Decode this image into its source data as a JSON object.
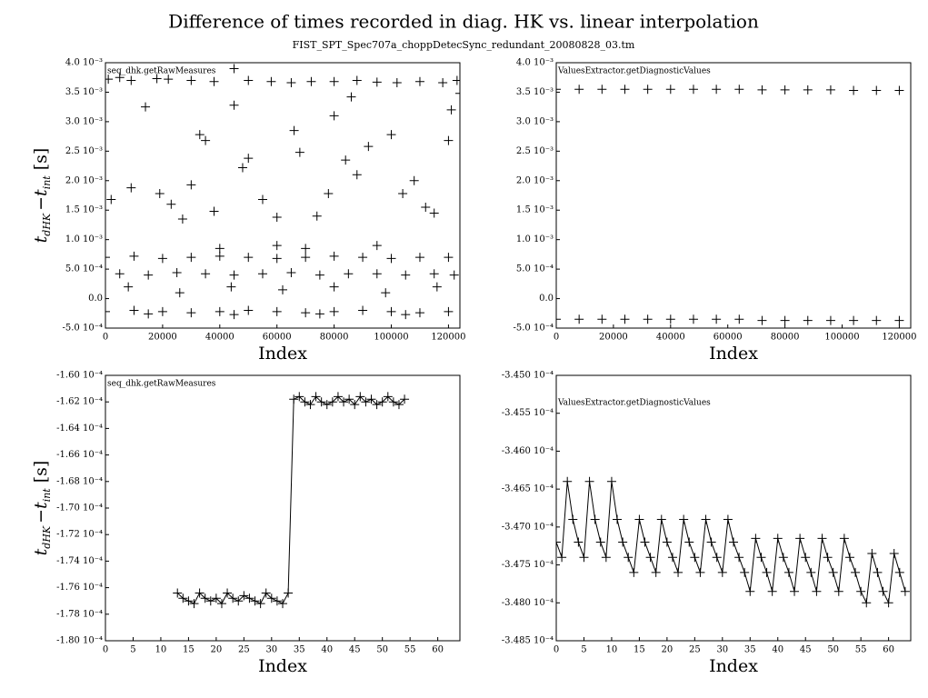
{
  "title": "Difference of times recorded in diag. HK vs. linear interpolation",
  "subtitle": "FIST_SPT_Spec707a_choppDetecSync_redundant_20080828_03.tm",
  "chart_data": [
    {
      "type": "scatter",
      "xlabel": "Index",
      "ylabel": [
        "t",
        "dHK",
        "−",
        "t",
        "int",
        " [s]"
      ],
      "xlim": [
        0,
        124000
      ],
      "xticks": [
        0,
        20000,
        40000,
        60000,
        80000,
        100000,
        120000
      ],
      "ylim": [
        -0.0005,
        0.004
      ],
      "yticks": [
        {
          "value": -0.0005,
          "label": "-5.0 10⁻⁴"
        },
        {
          "value": 0,
          "label": "0.0"
        },
        {
          "value": 0.0005,
          "label": "5.0 10⁻⁴"
        },
        {
          "value": 0.001,
          "label": "1.0 10⁻³"
        },
        {
          "value": 0.0015,
          "label": "1.5 10⁻³"
        },
        {
          "value": 0.002,
          "label": "2.0 10⁻³"
        },
        {
          "value": 0.0025,
          "label": "2.5 10⁻³"
        },
        {
          "value": 0.003,
          "label": "3.0 10⁻³"
        },
        {
          "value": 0.0035,
          "label": "3.5 10⁻³"
        },
        {
          "value": 0.004,
          "label": "4.0 10⁻³"
        }
      ],
      "series": [
        {
          "name": "seq_dhk.getRawMeasures",
          "color": "#000000",
          "x": [
            1000,
            5000,
            9000,
            18000,
            22000,
            30000,
            38000,
            45000,
            50000,
            58000,
            65000,
            72000,
            80000,
            88000,
            95000,
            102000,
            110000,
            118000,
            123000,
            2000,
            9000,
            14000,
            19000,
            23000,
            27000,
            30000,
            33000,
            35000,
            38000,
            45000,
            48000,
            50000,
            55000,
            60000,
            66000,
            68000,
            74000,
            78000,
            84000,
            88000,
            92000,
            100000,
            104000,
            108000,
            112000,
            115000,
            120000,
            121000,
            124000,
            86000,
            80000,
            40000,
            60000,
            70000,
            95000,
            0,
            10000,
            20000,
            30000,
            40000,
            50000,
            60000,
            70000,
            80000,
            90000,
            100000,
            110000,
            120000,
            5000,
            15000,
            25000,
            35000,
            45000,
            55000,
            65000,
            75000,
            85000,
            95000,
            105000,
            115000,
            122000,
            8000,
            26000,
            44000,
            62000,
            80000,
            98000,
            116000,
            0,
            10000,
            20000,
            30000,
            40000,
            50000,
            60000,
            70000,
            80000,
            90000,
            100000,
            110000,
            120000,
            15000,
            45000,
            75000,
            105000
          ],
          "values": [
            0.00372,
            0.00375,
            0.0037,
            0.00373,
            0.00372,
            0.0037,
            0.00368,
            0.0039,
            0.0037,
            0.00368,
            0.00366,
            0.00368,
            0.00368,
            0.0037,
            0.00367,
            0.00366,
            0.00368,
            0.00366,
            0.0037,
            0.00168,
            0.00188,
            0.00325,
            0.00178,
            0.0016,
            0.00135,
            0.00193,
            0.00278,
            0.00268,
            0.00148,
            0.00328,
            0.00222,
            0.00238,
            0.00168,
            0.00138,
            0.00285,
            0.00248,
            0.0014,
            0.00178,
            0.00235,
            0.0021,
            0.00258,
            0.00278,
            0.00178,
            0.002,
            0.00155,
            0.00145,
            0.00268,
            0.0032,
            0.00348,
            0.00342,
            0.0031,
            0.00085,
            0.0009,
            0.00085,
            0.0009,
            0.0007,
            0.00072,
            0.00068,
            0.0007,
            0.00072,
            0.0007,
            0.00068,
            0.0007,
            0.00072,
            0.0007,
            0.00068,
            0.0007,
            0.0007,
            0.00042,
            0.0004,
            0.00044,
            0.00042,
            0.0004,
            0.00042,
            0.00044,
            0.0004,
            0.00042,
            0.00042,
            0.0004,
            0.00042,
            0.0004,
            0.0002,
            0.0001,
            0.0002,
            0.00015,
            0.0002,
            0.0001,
            0.0002,
            -0.00022,
            -0.0002,
            -0.00022,
            -0.00024,
            -0.00022,
            -0.0002,
            -0.00022,
            -0.00024,
            -0.00022,
            -0.0002,
            -0.00022,
            -0.00024,
            -0.00022,
            -0.00026,
            -0.00027,
            -0.00026,
            -0.00027
          ]
        }
      ]
    },
    {
      "type": "scatter",
      "xlabel": "Index",
      "xlim": [
        0,
        124000
      ],
      "xticks": [
        0,
        20000,
        40000,
        60000,
        80000,
        100000,
        120000
      ],
      "ylim": [
        -0.0005,
        0.004
      ],
      "yticks": [
        {
          "value": -0.0005,
          "label": "-5.0 10⁻⁴"
        },
        {
          "value": 0,
          "label": "0.0"
        },
        {
          "value": 0.0005,
          "label": "5.0 10⁻⁴"
        },
        {
          "value": 0.001,
          "label": "1.0 10⁻³"
        },
        {
          "value": 0.0015,
          "label": "1.5 10⁻³"
        },
        {
          "value": 0.002,
          "label": "2.0 10⁻³"
        },
        {
          "value": 0.0025,
          "label": "2.5 10⁻³"
        },
        {
          "value": 0.003,
          "label": "3.0 10⁻³"
        },
        {
          "value": 0.0035,
          "label": "3.5 10⁻³"
        },
        {
          "value": 0.004,
          "label": "4.0 10⁻³"
        }
      ],
      "series": [
        {
          "name": "ValuesExtractor.getDiagnosticValues",
          "color": "#000000",
          "x": [
            0,
            8000,
            16000,
            24000,
            32000,
            40000,
            48000,
            56000,
            64000,
            72000,
            80000,
            88000,
            96000,
            104000,
            112000,
            120000,
            0,
            8000,
            16000,
            24000,
            32000,
            40000,
            48000,
            56000,
            64000,
            72000,
            80000,
            88000,
            96000,
            104000,
            112000,
            120000
          ],
          "values": [
            0.00355,
            0.00355,
            0.00355,
            0.00355,
            0.00355,
            0.00355,
            0.00355,
            0.00355,
            0.00355,
            0.00354,
            0.00354,
            0.00354,
            0.00354,
            0.00353,
            0.00353,
            0.00353,
            -0.00035,
            -0.00035,
            -0.00035,
            -0.00035,
            -0.00035,
            -0.00035,
            -0.00035,
            -0.00035,
            -0.00035,
            -0.00037,
            -0.00037,
            -0.00037,
            -0.00037,
            -0.00037,
            -0.00037,
            -0.00037
          ]
        }
      ]
    },
    {
      "type": "line",
      "xlabel": "Index",
      "ylabel": [
        "t",
        "dHK",
        "−",
        "t",
        "int",
        " [s]"
      ],
      "xlim": [
        0,
        64
      ],
      "xticks": [
        0,
        5,
        10,
        15,
        20,
        25,
        30,
        35,
        40,
        45,
        50,
        55,
        60
      ],
      "ylim": [
        -0.00018,
        -0.00016
      ],
      "yticks": [
        {
          "value": -0.00018,
          "label": "-1.80 10⁻⁴"
        },
        {
          "value": -0.000178,
          "label": "-1.78 10⁻⁴"
        },
        {
          "value": -0.000176,
          "label": "-1.76 10⁻⁴"
        },
        {
          "value": -0.000174,
          "label": "-1.74 10⁻⁴"
        },
        {
          "value": -0.000172,
          "label": "-1.72 10⁻⁴"
        },
        {
          "value": -0.00017,
          "label": "-1.70 10⁻⁴"
        },
        {
          "value": -0.000168,
          "label": "-1.68 10⁻⁴"
        },
        {
          "value": -0.000166,
          "label": "-1.66 10⁻⁴"
        },
        {
          "value": -0.000164,
          "label": "-1.64 10⁻⁴"
        },
        {
          "value": -0.000162,
          "label": "-1.62 10⁻⁴"
        },
        {
          "value": -0.00016,
          "label": "-1.60 10⁻⁴"
        }
      ],
      "series": [
        {
          "name": "seq_dhk.getRawMeasures",
          "color": "#000000",
          "x": [
            13,
            14,
            15,
            16,
            17,
            18,
            19,
            20,
            21,
            22,
            23,
            24,
            25,
            26,
            27,
            28,
            29,
            30,
            31,
            32,
            33,
            34,
            35,
            36,
            37,
            38,
            39,
            40,
            41,
            42,
            43,
            44,
            45,
            46,
            47,
            48,
            49,
            50,
            51,
            52,
            53,
            54
          ],
          "values": [
            -0.0001764,
            -0.0001768,
            -0.000177,
            -0.0001772,
            -0.0001764,
            -0.0001768,
            -0.000177,
            -0.0001768,
            -0.0001772,
            -0.0001764,
            -0.0001768,
            -0.000177,
            -0.0001766,
            -0.0001768,
            -0.000177,
            -0.0001772,
            -0.0001764,
            -0.0001768,
            -0.000177,
            -0.0001772,
            -0.0001764,
            -0.0001618,
            -0.0001616,
            -0.000162,
            -0.0001622,
            -0.0001616,
            -0.000162,
            -0.0001622,
            -0.000162,
            -0.0001616,
            -0.000162,
            -0.0001618,
            -0.0001622,
            -0.0001616,
            -0.000162,
            -0.0001618,
            -0.0001622,
            -0.000162,
            -0.0001616,
            -0.000162,
            -0.0001622,
            -0.0001618
          ]
        }
      ]
    },
    {
      "type": "line",
      "xlabel": "Index",
      "xlim": [
        0,
        64
      ],
      "xticks": [
        0,
        5,
        10,
        15,
        20,
        25,
        30,
        35,
        40,
        45,
        50,
        55,
        60
      ],
      "ylim": [
        -0.0003485,
        -0.000345
      ],
      "yticks": [
        {
          "value": -0.0003485,
          "label": "-3.485 10⁻⁴"
        },
        {
          "value": -0.000348,
          "label": "-3.480 10⁻⁴"
        },
        {
          "value": -0.0003475,
          "label": "-3.475 10⁻⁴"
        },
        {
          "value": -0.000347,
          "label": "-3.470 10⁻⁴"
        },
        {
          "value": -0.0003465,
          "label": "-3.465 10⁻⁴"
        },
        {
          "value": -0.000346,
          "label": "-3.460 10⁻⁴"
        },
        {
          "value": -0.0003455,
          "label": "-3.455 10⁻⁴"
        },
        {
          "value": -0.000345,
          "label": "-3.450 10⁻⁴"
        }
      ],
      "series": [
        {
          "name": "ValuesExtractor.getDiagnosticValues",
          "color": "#000000",
          "x": [
            0,
            1,
            2,
            3,
            4,
            5,
            6,
            7,
            8,
            9,
            10,
            11,
            12,
            13,
            14,
            15,
            16,
            17,
            18,
            19,
            20,
            21,
            22,
            23,
            24,
            25,
            26,
            27,
            28,
            29,
            30,
            31,
            32,
            33,
            34,
            35,
            36,
            37,
            38,
            39,
            40,
            41,
            42,
            43,
            44,
            45,
            46,
            47,
            48,
            49,
            50,
            51,
            52,
            53,
            54,
            55,
            56,
            57,
            58,
            59,
            60,
            61,
            62,
            63
          ],
          "values": [
            -0.0003472,
            -0.0003474,
            -0.0003464,
            -0.0003469,
            -0.0003472,
            -0.0003474,
            -0.0003464,
            -0.0003469,
            -0.0003472,
            -0.0003474,
            -0.0003464,
            -0.0003469,
            -0.0003472,
            -0.0003474,
            -0.0003476,
            -0.0003469,
            -0.0003472,
            -0.0003474,
            -0.0003476,
            -0.0003469,
            -0.0003472,
            -0.0003474,
            -0.0003476,
            -0.0003469,
            -0.0003472,
            -0.0003474,
            -0.0003476,
            -0.0003469,
            -0.0003472,
            -0.0003474,
            -0.0003476,
            -0.0003469,
            -0.0003472,
            -0.0003474,
            -0.0003476,
            -0.00034785,
            -0.00034715,
            -0.0003474,
            -0.0003476,
            -0.00034785,
            -0.00034715,
            -0.0003474,
            -0.0003476,
            -0.00034785,
            -0.00034715,
            -0.0003474,
            -0.0003476,
            -0.00034785,
            -0.00034715,
            -0.0003474,
            -0.0003476,
            -0.00034785,
            -0.00034715,
            -0.0003474,
            -0.0003476,
            -0.00034785,
            -0.000348,
            -0.00034735,
            -0.0003476,
            -0.00034785,
            -0.000348,
            -0.00034735,
            -0.0003476,
            -0.00034785
          ]
        }
      ]
    }
  ]
}
